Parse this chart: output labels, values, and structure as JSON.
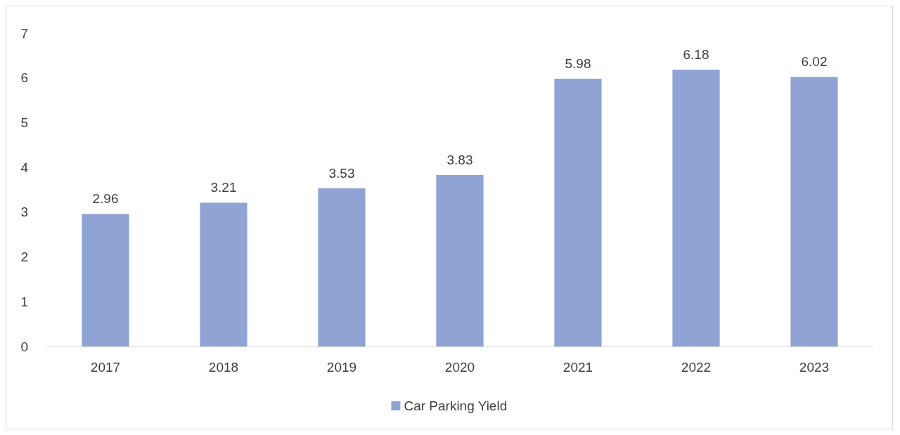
{
  "chart_data": {
    "type": "bar",
    "categories": [
      "2017",
      "2018",
      "2019",
      "2020",
      "2021",
      "2022",
      "2023"
    ],
    "series": [
      {
        "name": "Car Parking Yield",
        "color": "#8fa4d4",
        "values": [
          2.96,
          3.21,
          3.53,
          3.83,
          5.98,
          6.18,
          6.02
        ]
      }
    ],
    "ylim": [
      0,
      7
    ],
    "yticks": [
      0,
      1,
      2,
      3,
      4,
      5,
      6,
      7
    ],
    "grid": false,
    "legend": "bottom",
    "data_labels": true
  }
}
